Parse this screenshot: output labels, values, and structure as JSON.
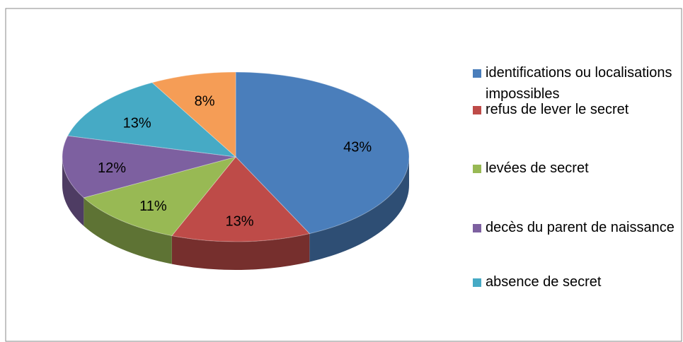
{
  "chart_data": {
    "type": "pie3d",
    "categories": [
      "identifications ou localisations impossibles",
      "refus de lever le secret",
      "levées de secret",
      "decès du parent de naissance",
      "absence de secret",
      null
    ],
    "values": [
      43,
      13,
      11,
      12,
      13,
      8
    ],
    "value_labels": [
      "43%",
      "13%",
      "11%",
      "12%",
      "13%",
      "8%"
    ],
    "colors": [
      "#4a7ebb",
      "#be4b48",
      "#98b954",
      "#7d60a0",
      "#46aac5",
      "#f59d56"
    ],
    "legend": "right"
  }
}
